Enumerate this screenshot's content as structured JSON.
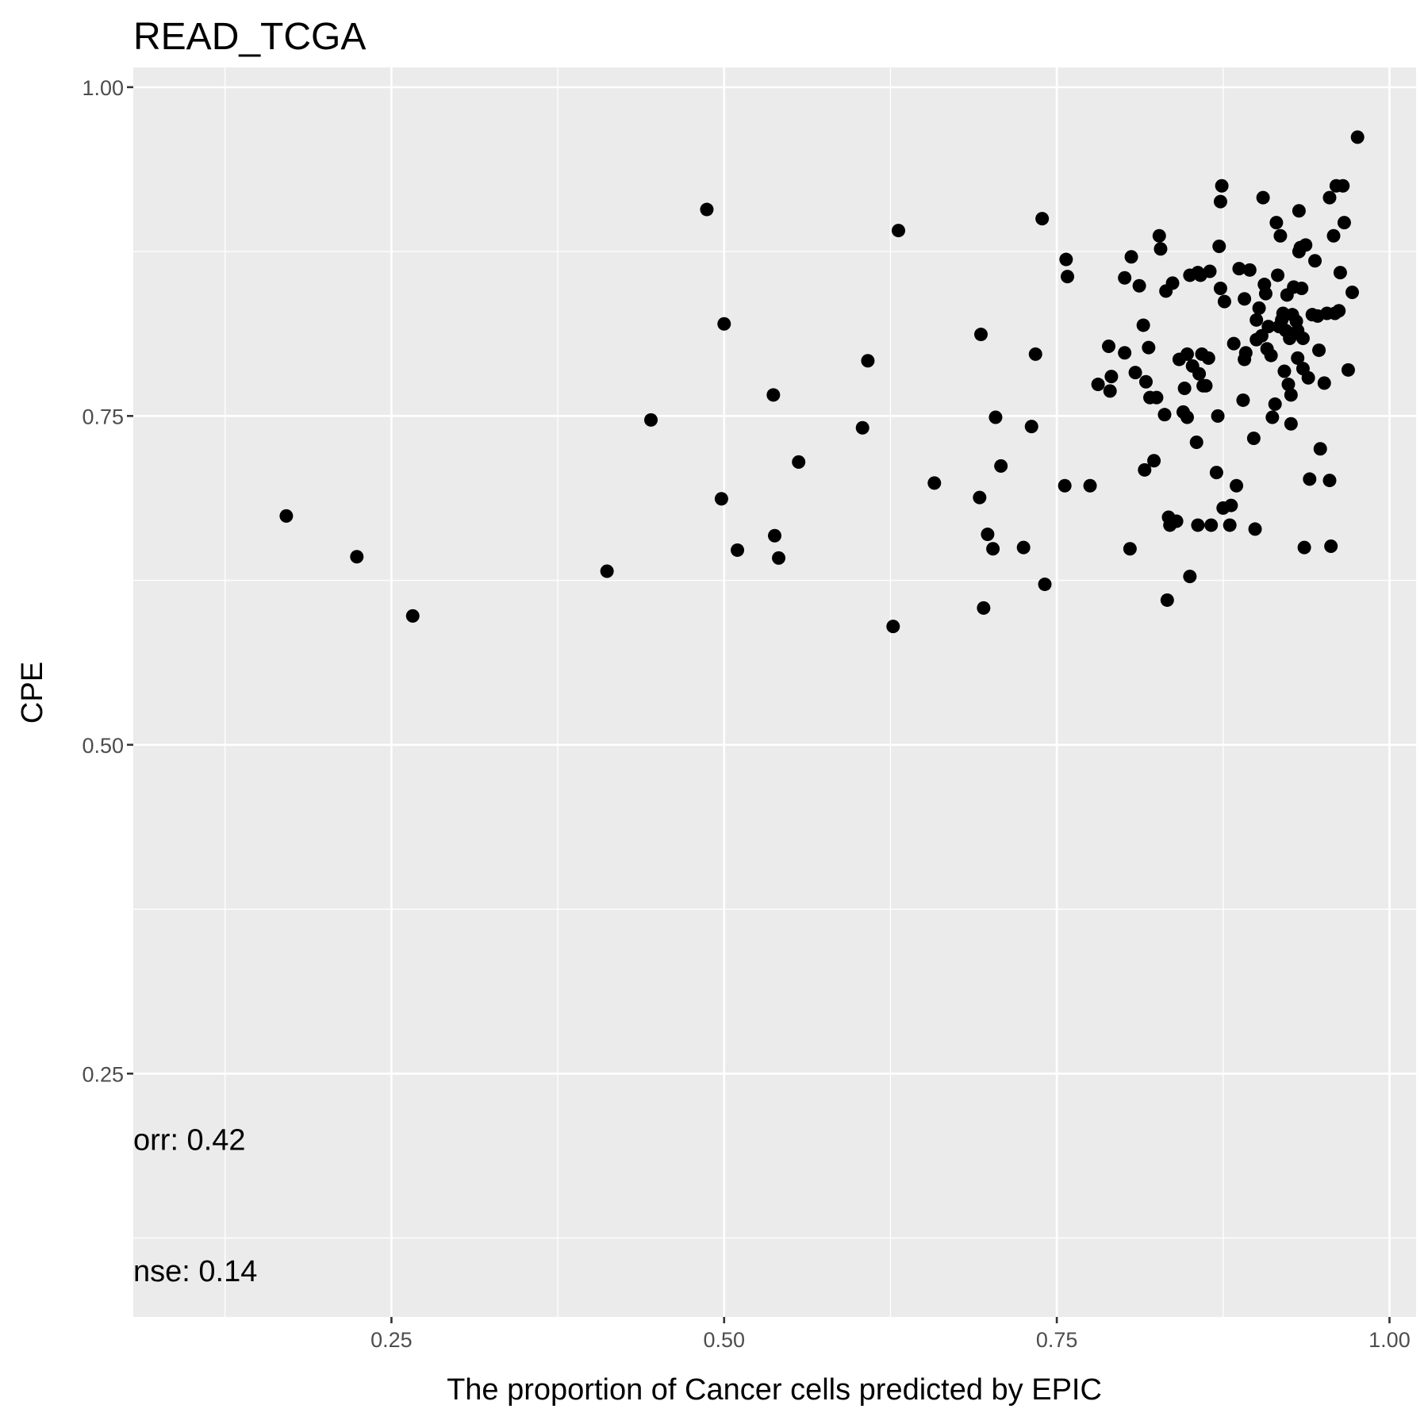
{
  "chart_data": {
    "type": "scatter",
    "title": "READ_TCGA",
    "xlabel": "The proportion of Cancer cells predicted by EPIC",
    "ylabel": "CPE",
    "xlim": [
      0.056,
      1.02
    ],
    "ylim": [
      0.065,
      1.015
    ],
    "x_ticks": [
      0.25,
      0.5,
      0.75,
      1.0
    ],
    "x_tick_labels": [
      "0.25",
      "0.50",
      "0.75",
      "1.00"
    ],
    "y_ticks": [
      0.25,
      0.5,
      0.75,
      1.0
    ],
    "y_tick_labels": [
      "0.25",
      "0.50",
      "0.75",
      "1.00"
    ],
    "grid": true,
    "background": "#ebebeb",
    "point_color": "#000000",
    "annotations": [
      {
        "text": "orr: 0.42",
        "x": 0.056,
        "y": 0.192
      },
      {
        "text": "nse: 0.14",
        "x": 0.056,
        "y": 0.092
      }
    ],
    "points": [
      [
        0.171,
        0.674
      ],
      [
        0.224,
        0.643
      ],
      [
        0.266,
        0.598
      ],
      [
        0.412,
        0.632
      ],
      [
        0.445,
        0.747
      ],
      [
        0.487,
        0.907
      ],
      [
        0.498,
        0.687
      ],
      [
        0.5,
        0.82
      ],
      [
        0.51,
        0.648
      ],
      [
        0.537,
        0.766
      ],
      [
        0.538,
        0.659
      ],
      [
        0.541,
        0.642
      ],
      [
        0.556,
        0.715
      ],
      [
        0.604,
        0.741
      ],
      [
        0.608,
        0.792
      ],
      [
        0.627,
        0.59
      ],
      [
        0.631,
        0.891
      ],
      [
        0.658,
        0.699
      ],
      [
        0.692,
        0.688
      ],
      [
        0.693,
        0.812
      ],
      [
        0.695,
        0.604
      ],
      [
        0.698,
        0.66
      ],
      [
        0.702,
        0.649
      ],
      [
        0.704,
        0.749
      ],
      [
        0.708,
        0.712
      ],
      [
        0.725,
        0.65
      ],
      [
        0.731,
        0.742
      ],
      [
        0.734,
        0.797
      ],
      [
        0.739,
        0.9
      ],
      [
        0.741,
        0.622
      ],
      [
        0.756,
        0.697
      ],
      [
        0.757,
        0.869
      ],
      [
        0.758,
        0.856
      ],
      [
        0.775,
        0.697
      ],
      [
        0.781,
        0.774
      ],
      [
        0.789,
        0.803
      ],
      [
        0.79,
        0.769
      ],
      [
        0.791,
        0.78
      ],
      [
        0.801,
        0.855
      ],
      [
        0.801,
        0.798
      ],
      [
        0.805,
        0.649
      ],
      [
        0.806,
        0.871
      ],
      [
        0.809,
        0.783
      ],
      [
        0.812,
        0.849
      ],
      [
        0.815,
        0.819
      ],
      [
        0.816,
        0.709
      ],
      [
        0.817,
        0.776
      ],
      [
        0.819,
        0.802
      ],
      [
        0.82,
        0.764
      ],
      [
        0.823,
        0.716
      ],
      [
        0.825,
        0.764
      ],
      [
        0.827,
        0.887
      ],
      [
        0.828,
        0.877
      ],
      [
        0.831,
        0.751
      ],
      [
        0.832,
        0.845
      ],
      [
        0.833,
        0.61
      ],
      [
        0.834,
        0.673
      ],
      [
        0.835,
        0.667
      ],
      [
        0.837,
        0.851
      ],
      [
        0.84,
        0.67
      ],
      [
        0.842,
        0.793
      ],
      [
        0.845,
        0.753
      ],
      [
        0.846,
        0.771
      ],
      [
        0.848,
        0.749
      ],
      [
        0.848,
        0.797
      ],
      [
        0.85,
        0.857
      ],
      [
        0.85,
        0.628
      ],
      [
        0.852,
        0.788
      ],
      [
        0.855,
        0.73
      ],
      [
        0.856,
        0.859
      ],
      [
        0.856,
        0.667
      ],
      [
        0.857,
        0.782
      ],
      [
        0.858,
        0.857
      ],
      [
        0.859,
        0.797
      ],
      [
        0.86,
        0.773
      ],
      [
        0.862,
        0.773
      ],
      [
        0.864,
        0.794
      ],
      [
        0.865,
        0.86
      ],
      [
        0.866,
        0.667
      ],
      [
        0.87,
        0.707
      ],
      [
        0.871,
        0.75
      ],
      [
        0.872,
        0.879
      ],
      [
        0.873,
        0.913
      ],
      [
        0.873,
        0.847
      ],
      [
        0.874,
        0.925
      ],
      [
        0.875,
        0.68
      ],
      [
        0.876,
        0.837
      ],
      [
        0.88,
        0.667
      ],
      [
        0.881,
        0.682
      ],
      [
        0.883,
        0.805
      ],
      [
        0.885,
        0.697
      ],
      [
        0.887,
        0.862
      ],
      [
        0.89,
        0.762
      ],
      [
        0.891,
        0.839
      ],
      [
        0.891,
        0.793
      ],
      [
        0.892,
        0.798
      ],
      [
        0.895,
        0.861
      ],
      [
        0.898,
        0.733
      ],
      [
        0.899,
        0.664
      ],
      [
        0.9,
        0.808
      ],
      [
        0.9,
        0.823
      ],
      [
        0.902,
        0.832
      ],
      [
        0.904,
        0.811
      ],
      [
        0.905,
        0.916
      ],
      [
        0.906,
        0.85
      ],
      [
        0.907,
        0.843
      ],
      [
        0.908,
        0.801
      ],
      [
        0.909,
        0.818
      ],
      [
        0.911,
        0.796
      ],
      [
        0.912,
        0.749
      ],
      [
        0.914,
        0.759
      ],
      [
        0.915,
        0.897
      ],
      [
        0.916,
        0.857
      ],
      [
        0.917,
        0.818
      ],
      [
        0.918,
        0.887
      ],
      [
        0.919,
        0.823
      ],
      [
        0.92,
        0.828
      ],
      [
        0.921,
        0.784
      ],
      [
        0.922,
        0.815
      ],
      [
        0.923,
        0.842
      ],
      [
        0.924,
        0.774
      ],
      [
        0.925,
        0.809
      ],
      [
        0.926,
        0.744
      ],
      [
        0.926,
        0.766
      ],
      [
        0.927,
        0.827
      ],
      [
        0.928,
        0.848
      ],
      [
        0.93,
        0.822
      ],
      [
        0.931,
        0.794
      ],
      [
        0.931,
        0.815
      ],
      [
        0.932,
        0.906
      ],
      [
        0.932,
        0.875
      ],
      [
        0.933,
        0.878
      ],
      [
        0.934,
        0.847
      ],
      [
        0.935,
        0.786
      ],
      [
        0.935,
        0.809
      ],
      [
        0.936,
        0.65
      ],
      [
        0.937,
        0.88
      ],
      [
        0.939,
        0.779
      ],
      [
        0.94,
        0.702
      ],
      [
        0.942,
        0.827
      ],
      [
        0.944,
        0.868
      ],
      [
        0.946,
        0.826
      ],
      [
        0.947,
        0.8
      ],
      [
        0.948,
        0.725
      ],
      [
        0.951,
        0.775
      ],
      [
        0.953,
        0.828
      ],
      [
        0.955,
        0.916
      ],
      [
        0.955,
        0.701
      ],
      [
        0.956,
        0.651
      ],
      [
        0.958,
        0.887
      ],
      [
        0.959,
        0.828
      ],
      [
        0.96,
        0.925
      ],
      [
        0.962,
        0.83
      ],
      [
        0.963,
        0.859
      ],
      [
        0.965,
        0.925
      ],
      [
        0.966,
        0.897
      ],
      [
        0.969,
        0.785
      ],
      [
        0.972,
        0.844
      ],
      [
        0.976,
        0.962
      ]
    ]
  }
}
